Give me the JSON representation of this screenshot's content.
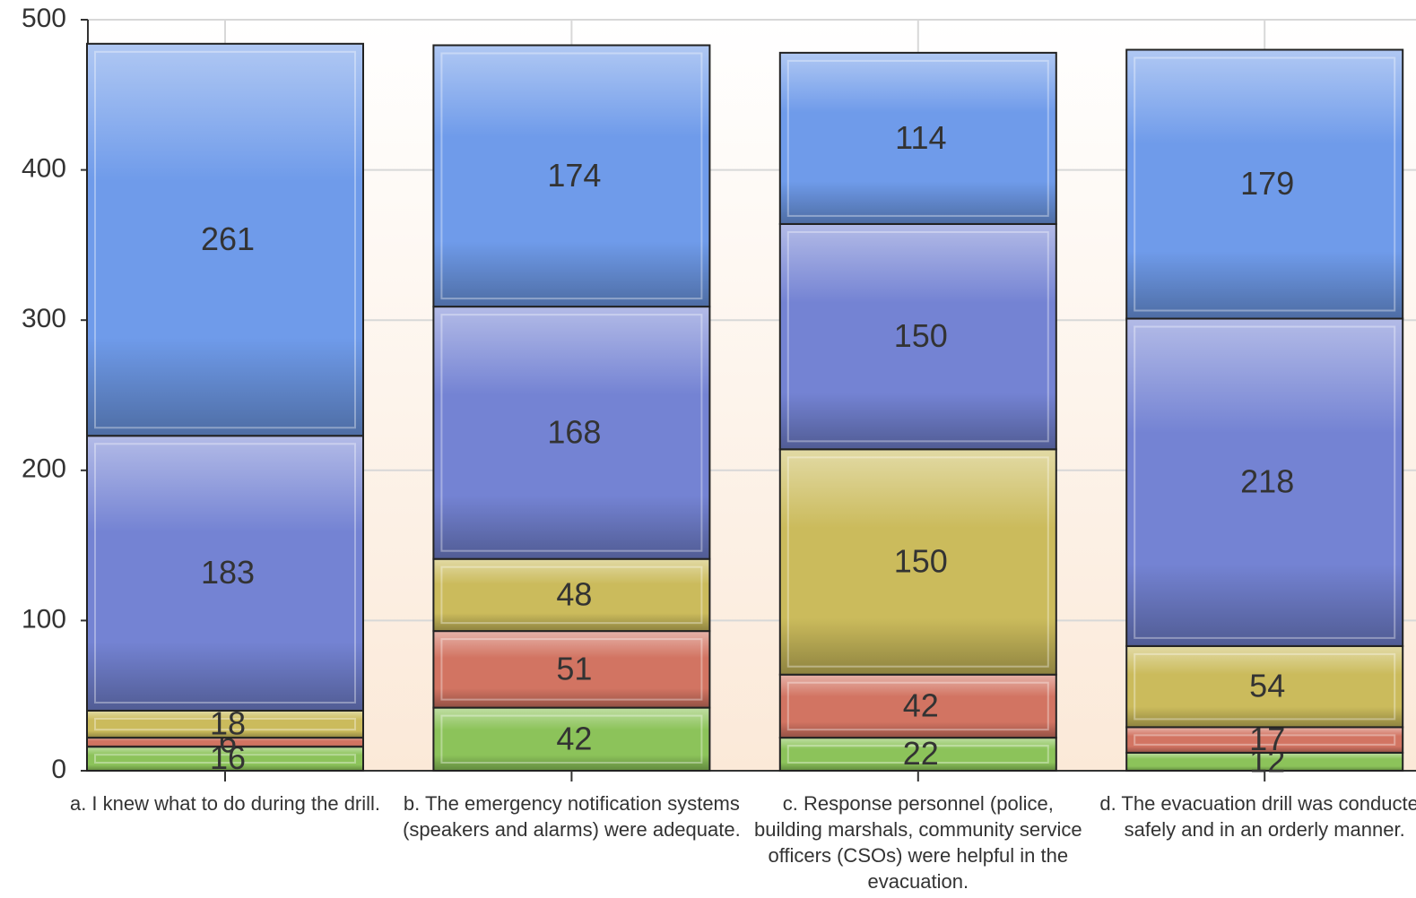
{
  "chart_data": {
    "type": "bar",
    "stacked": true,
    "categories": [
      "a. I knew what to do during the drill.",
      "b. The emergency notification systems (speakers and alarms) were adequate.",
      "c. Response personnel (police, building marshals, community service officers (CSOs) were helpful in the evacuation.",
      "d. The evacuation drill was conducted safely and in an orderly manner."
    ],
    "series": [
      {
        "color": "#8cc35a",
        "values": [
          16,
          42,
          22,
          12
        ]
      },
      {
        "color": "#d27462",
        "values": [
          6,
          51,
          42,
          17
        ]
      },
      {
        "color": "#cbbb5c",
        "values": [
          18,
          48,
          150,
          54
        ]
      },
      {
        "color": "#7483d3",
        "values": [
          183,
          168,
          150,
          218
        ]
      },
      {
        "color": "#6f9bea",
        "values": [
          261,
          174,
          114,
          179
        ]
      }
    ],
    "ylim": [
      0,
      500
    ],
    "yticks": [
      0,
      100,
      200,
      300,
      400,
      500
    ],
    "grid": true
  }
}
